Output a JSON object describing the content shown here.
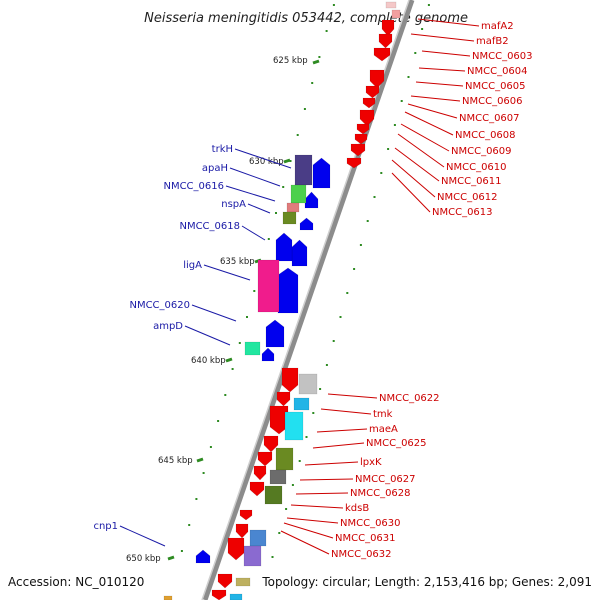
{
  "title": "Neisseria meningitidis 053442, complete genome",
  "footer": {
    "accession": "Accession: NC_010120",
    "summary": "Topology: circular; Length: 2,153,416 bp; Genes: 2,091"
  },
  "colors": {
    "backbone": "#8c8c8c",
    "forward_strand": "#0000ee",
    "reverse_strand": "#ee0000",
    "forward_label": "#1a1aa6",
    "reverse_label": "#cc0000",
    "tick": "#2e8b22"
  },
  "kbp_ticks": [
    {
      "label": "625 kbp"
    },
    {
      "label": "630 kbp"
    },
    {
      "label": "635 kbp"
    },
    {
      "label": "640 kbp"
    },
    {
      "label": "645 kbp"
    },
    {
      "label": "650 kbp"
    }
  ],
  "forward_labels": [
    "trkH",
    "apaH",
    "NMCC_0616",
    "nspA",
    "NMCC_0618",
    "ligA",
    "NMCC_0620",
    "ampD",
    "cnp1"
  ],
  "reverse_labels": [
    "mafA2",
    "mafB2",
    "NMCC_0603",
    "NMCC_0604",
    "NMCC_0605",
    "NMCC_0606",
    "NMCC_0607",
    "NMCC_0608",
    "NMCC_0609",
    "NMCC_0610",
    "NMCC_0611",
    "NMCC_0612",
    "NMCC_0613",
    "NMCC_0622",
    "tmk",
    "maeA",
    "NMCC_0625",
    "lpxK",
    "NMCC_0627",
    "NMCC_0628",
    "kdsB",
    "NMCC_0630",
    "NMCC_0631",
    "NMCC_0632"
  ]
}
